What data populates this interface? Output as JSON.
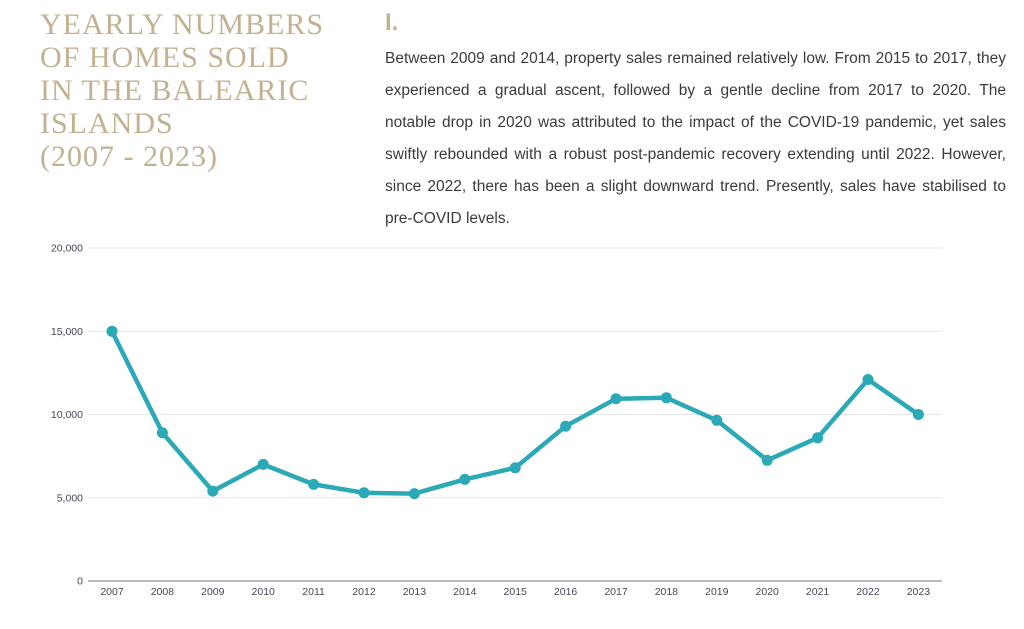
{
  "heading": {
    "lines": [
      "YEARLY NUMBERS",
      "OF HOMES SOLD",
      "IN THE BALEARIC",
      "ISLANDS",
      "(2007 - 2023)"
    ],
    "color": "#C2B192"
  },
  "section": {
    "label": "I.",
    "body": "Between 2009 and 2014, property sales remained relatively low. From 2015 to 2017, they experienced a gradual ascent, followed by a gentle decline from 2017 to 2020. The notable drop in 2020 was attributed to the impact of the COVID-19 pandemic, yet sales swiftly rebounded with a robust post-pandemic recovery extending until 2022. However, since 2022, there has been a slight downward trend. Presently, sales have stabilised to pre-COVID levels."
  },
  "chart_data": {
    "type": "line",
    "title": "Yearly numbers of homes sold in the Balearic Islands (2007 - 2023)",
    "x": [
      "2007",
      "2008",
      "2009",
      "2010",
      "2011",
      "2012",
      "2013",
      "2014",
      "2015",
      "2016",
      "2017",
      "2018",
      "2019",
      "2020",
      "2021",
      "2022",
      "2023"
    ],
    "values": [
      15000,
      8900,
      5400,
      7000,
      5800,
      5300,
      5250,
      6100,
      6800,
      9300,
      10950,
      11000,
      9650,
      7250,
      8600,
      12100,
      10000
    ],
    "xlabel": "",
    "ylabel": "",
    "ylim": [
      0,
      20000
    ],
    "yticks": [
      0,
      5000,
      10000,
      15000,
      20000
    ],
    "ytick_labels": [
      "0",
      "5,000",
      "10,000",
      "15,000",
      "20,000"
    ],
    "grid": true,
    "legend": "none",
    "line_color": "#2BA9B6",
    "grid_color": "#E5E5EA",
    "axis_color": "#B9B9C2",
    "label_color": "#46465A"
  }
}
